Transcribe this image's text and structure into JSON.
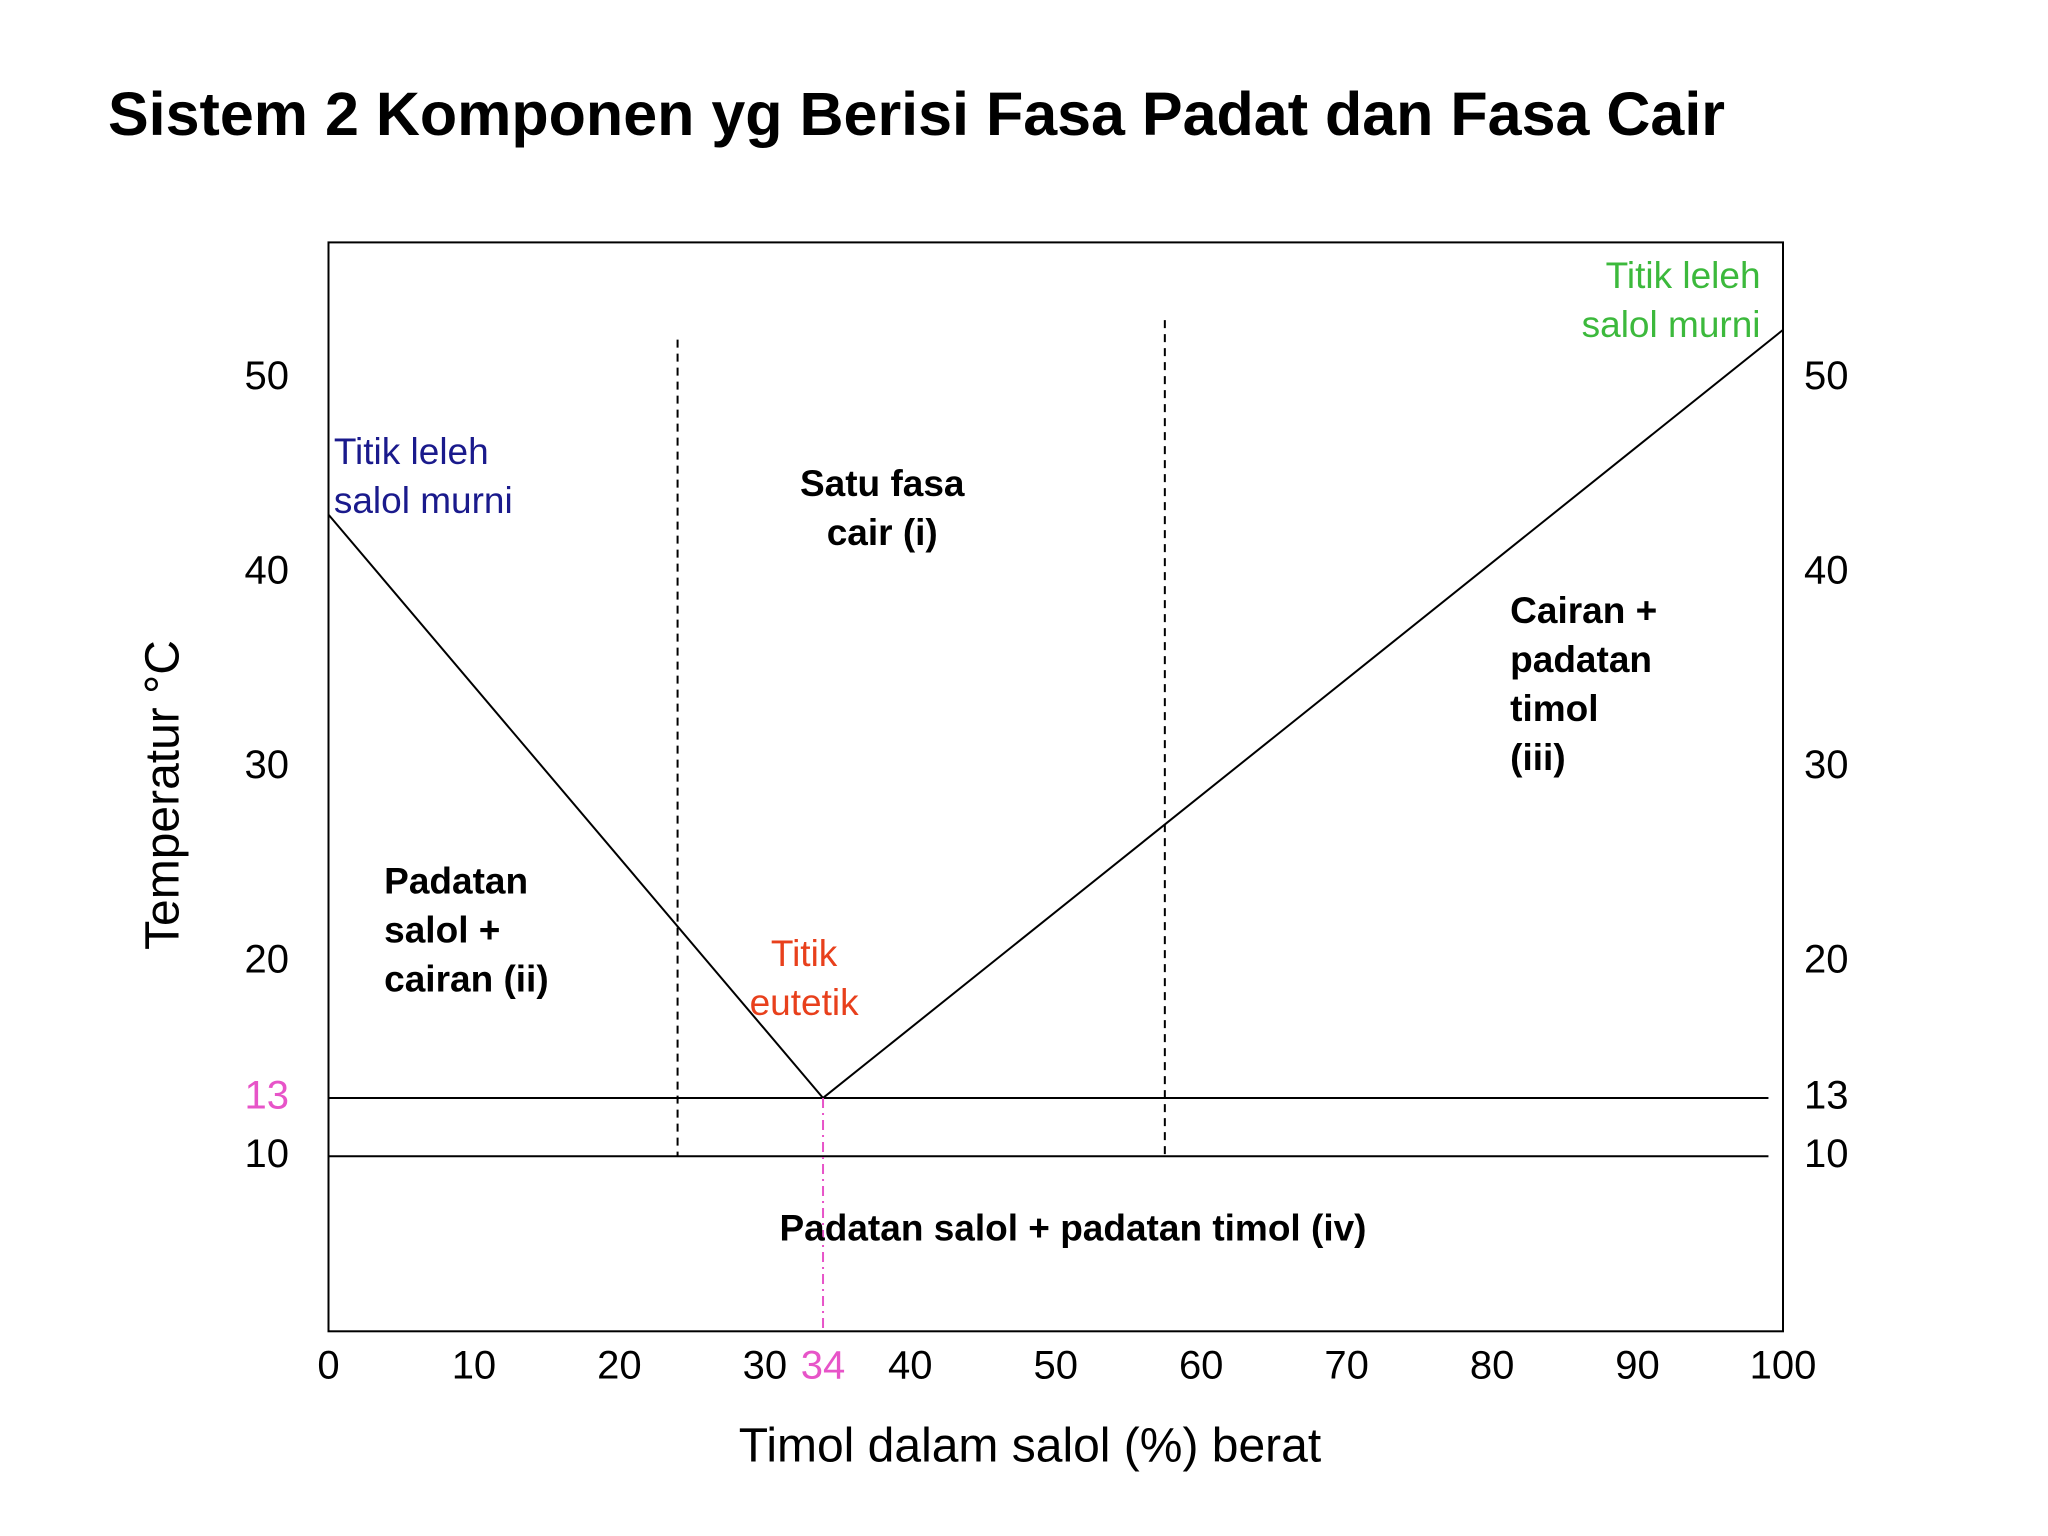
{
  "chart_data": {
    "type": "line",
    "title": "Sistem 2 Komponen yg Berisi Fasa Padat dan Fasa Cair",
    "x_label": "Timol dalam salol (%) berat",
    "y_label": "Temperatur °C",
    "xlim": [
      0,
      100
    ],
    "xticks": [
      0,
      10,
      20,
      30,
      34,
      40,
      50,
      60,
      70,
      80,
      90,
      100
    ],
    "xtick_colors": [
      "#000000",
      "#000000",
      "#000000",
      "#000000",
      "#e754c8",
      "#000000",
      "#000000",
      "#000000",
      "#000000",
      "#000000",
      "#000000",
      "#000000"
    ],
    "ylim": [
      1,
      57
    ],
    "yticks": [
      10,
      13,
      20,
      30,
      40,
      50
    ],
    "ytick_colors": [
      "#000000",
      "#e754c8",
      "#000000",
      "#000000",
      "#000000",
      "#000000"
    ],
    "y2lim": [
      1,
      57
    ],
    "y2ticks": [
      10,
      13,
      20,
      30,
      40,
      50
    ],
    "series": [
      {
        "color": "#000000",
        "dash": "solid",
        "x": [
          0,
          34,
          100
        ],
        "values": [
          43,
          13,
          52.5
        ]
      },
      {
        "color": "#000000",
        "dash": "solid",
        "x": [
          0,
          99
        ],
        "values": [
          13,
          13
        ]
      },
      {
        "color": "#000000",
        "dash": "solid",
        "x": [
          0,
          99
        ],
        "values": [
          10,
          10
        ]
      },
      {
        "color": "#000000",
        "dash": "dashed",
        "x": [
          24,
          24
        ],
        "values": [
          52,
          10
        ]
      },
      {
        "color": "#000000",
        "dash": "dashed",
        "x": [
          57.5,
          57.5
        ],
        "values": [
          53,
          10
        ]
      },
      {
        "color": "#e754c8",
        "dash": "dashdot",
        "x": [
          34,
          34
        ],
        "values": [
          13,
          1
        ]
      }
    ],
    "annotations": [
      {
        "lines": [
          "Titik leleh",
          "salol murni"
        ],
        "color": "#1a1a8c",
        "bold": false
      },
      {
        "lines": [
          "Satu fasa",
          "cair (i)"
        ],
        "color": "#000000",
        "bold": true
      },
      {
        "lines": [
          "Titik leleh",
          "salol murni"
        ],
        "color": "#3cb93c",
        "bold": false
      },
      {
        "lines": [
          "Cairan +",
          "padatan",
          "timol",
          "(iii)"
        ],
        "color": "#000000",
        "bold": true
      },
      {
        "lines": [
          "Padatan",
          "salol +",
          "cairan  (ii)"
        ],
        "color": "#000000",
        "bold": true
      },
      {
        "lines": [
          "Titik",
          "eutetik"
        ],
        "color": "#e8401c",
        "bold": false
      },
      {
        "lines": [
          "Padatan salol + padatan timol  (iv)"
        ],
        "color": "#000000",
        "bold": true
      }
    ]
  }
}
